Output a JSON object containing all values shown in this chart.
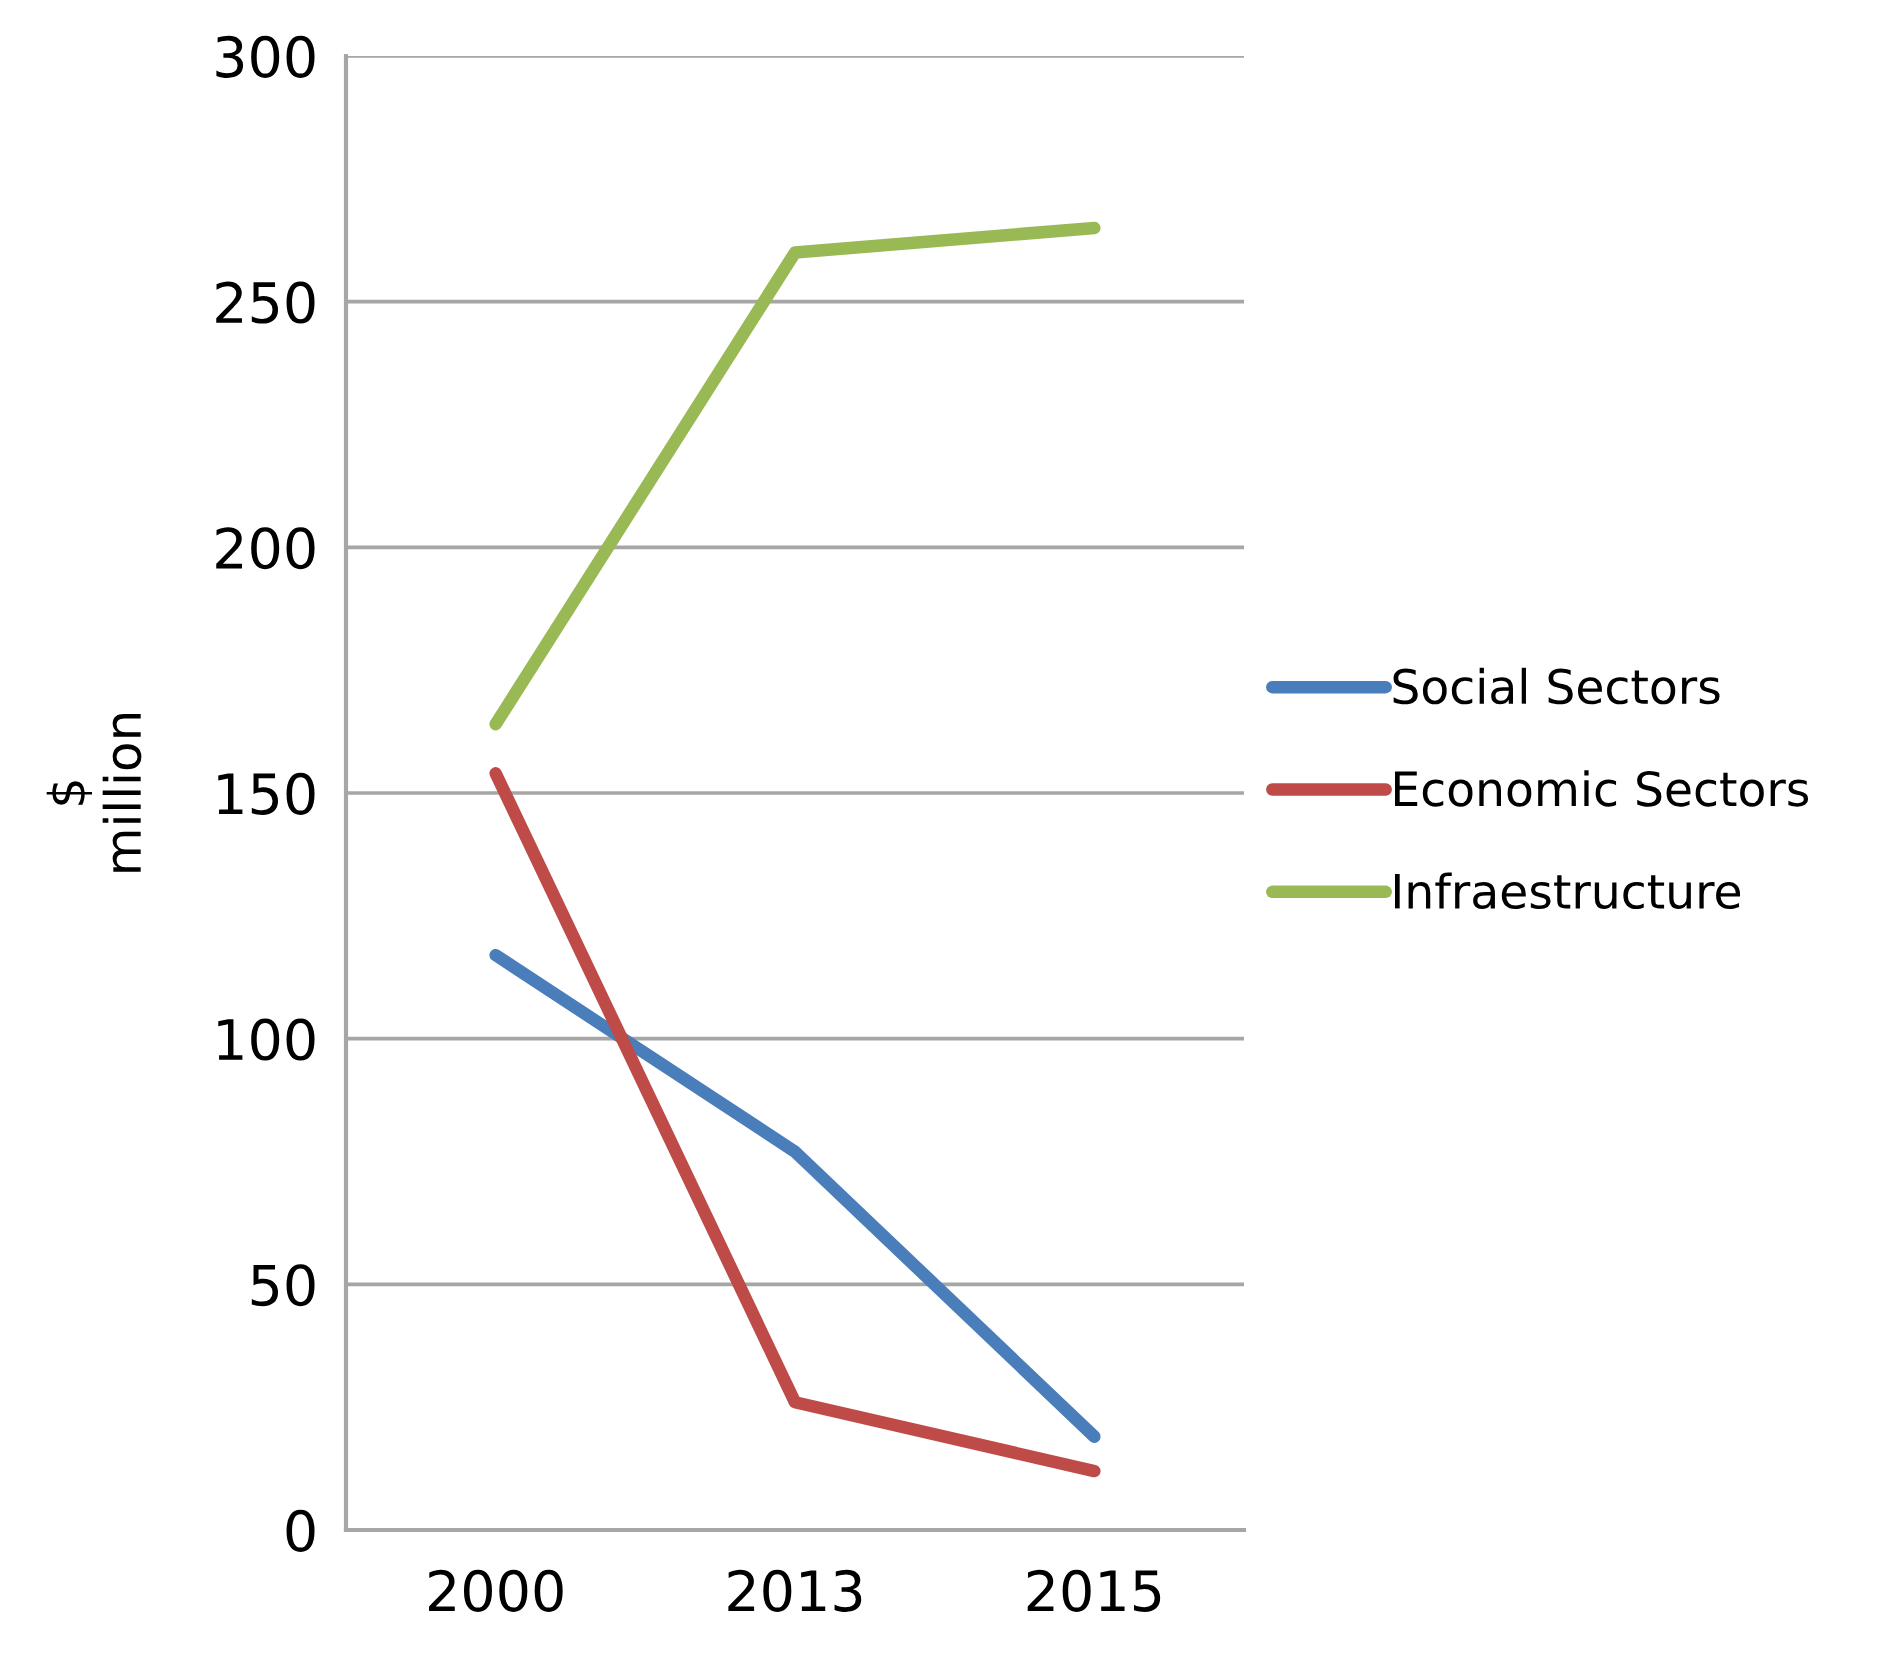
{
  "chart_data": {
    "type": "line",
    "ylabel": "$\nmillion",
    "categories": [
      "2000",
      "2013",
      "2015"
    ],
    "series": [
      {
        "name": "Social Sectors",
        "color": "#4a7ebb",
        "values": [
          117,
          77,
          19
        ]
      },
      {
        "name": "Economic Sectors",
        "color": "#be4b48",
        "values": [
          154,
          26,
          12
        ]
      },
      {
        "name": "Infraestructure",
        "color": "#98b954",
        "values": [
          164,
          260,
          265
        ]
      }
    ],
    "ylim": [
      0,
      300
    ],
    "yticks": [
      0,
      50,
      100,
      150,
      200,
      250,
      300
    ],
    "grid": "y",
    "legend": "right",
    "marker": "none",
    "line_style": "solid"
  }
}
